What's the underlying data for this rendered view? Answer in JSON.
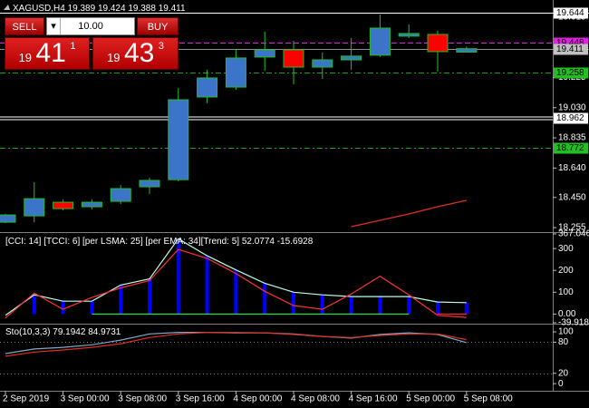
{
  "trade_panel": {
    "sell": "SELL",
    "buy": "BUY",
    "lot": "10.00",
    "sell_price": [
      "19",
      "41",
      "1"
    ],
    "buy_price": [
      "19",
      "43",
      "3"
    ]
  },
  "chart_data": [
    {
      "type": "candlestick",
      "title": "XAGUSD,H4",
      "categories": [
        "2 Sep 2019",
        null,
        "3 Sep 00:00",
        null,
        "3 Sep 08:00",
        null,
        "3 Sep 16:00",
        null,
        "4 Sep 00:00",
        null,
        "4 Sep 08:00",
        null,
        "4 Sep 16:00",
        null,
        "5 Sep 00:00",
        null,
        "5 Sep 08:00"
      ],
      "open": [
        18.29,
        18.331,
        18.419,
        18.39,
        18.425,
        18.519,
        18.565,
        19.099,
        19.163,
        19.357,
        19.404,
        19.292,
        19.339,
        19.369,
        19.492,
        19.503,
        19.389
      ],
      "high": [
        18.345,
        18.548,
        18.437,
        18.437,
        18.53,
        18.577,
        19.157,
        19.275,
        19.41,
        19.521,
        19.462,
        19.386,
        19.48,
        19.632,
        19.568,
        19.527,
        19.424
      ],
      "low": [
        18.285,
        18.29,
        18.366,
        18.372,
        18.407,
        18.472,
        18.554,
        19.058,
        19.146,
        19.269,
        19.181,
        19.216,
        19.275,
        19.357,
        19.48,
        19.263,
        19.388
      ],
      "close": [
        18.337,
        18.442,
        18.378,
        18.419,
        18.507,
        18.56,
        19.081,
        19.222,
        19.351,
        19.404,
        19.292,
        19.339,
        19.363,
        19.544,
        19.509,
        19.392,
        19.411
      ],
      "bull_color": "#3b74c9",
      "bear_color": "#ff0000",
      "wick_color": "#22c022",
      "series": [
        {
          "color": "#e03020",
          "values": [
            null,
            null,
            null,
            null,
            null,
            null,
            null,
            null,
            null,
            null,
            null,
            null,
            18.261,
            18.302,
            18.343,
            18.39,
            18.431
          ]
        }
      ],
      "levels": [
        {
          "value": 19.644,
          "color": "#ffffff",
          "style": "solid",
          "label_bg": "#ffffff"
        },
        {
          "value": 19.448,
          "color": "#e020e0",
          "style": "dashed",
          "label_bg": "#e020e0"
        },
        {
          "value": 19.411,
          "color": "#909090",
          "style": "solid",
          "label_bg": "#c0c0c0"
        },
        {
          "value": 19.258,
          "color": "#20a020",
          "style": "dashdot",
          "label_bg": "#20c020"
        },
        {
          "value": 18.962,
          "color": "#ffffff",
          "style": "double",
          "label_bg": "#ffffff"
        },
        {
          "value": 18.772,
          "color": "#20a020",
          "style": "dashdot",
          "label_bg": "#20c020"
        }
      ],
      "ylim": [
        18.232,
        19.708
      ],
      "yticks": [
        19.615,
        19.225,
        {
          "value": 19.03,
          "label": "19.030"
        },
        18.835,
        {
          "value": 18.64,
          "label": "18.640"
        },
        {
          "value": 18.45,
          "label": "18.450"
        },
        18.255
      ]
    },
    {
      "type": "indicator",
      "title": "[CCI: 14] [TCCI: 6] [per LSMA: 25] [per EMA: 34][Trend: 5]",
      "series": [
        {
          "color": "#b8ffe8",
          "histogram_color": "#0000ff",
          "values": [
            -6,
            88,
            59,
            59,
            133,
            161,
            345,
            267,
            202,
            141,
            100,
            88,
            80,
            80,
            80,
            55,
            52.0774
          ]
        },
        {
          "color": "#ff3030",
          "values": [
            -18,
            96,
            22,
            76,
            120,
            153,
            296,
            255,
            186,
            104,
            39,
            22,
            92,
            173,
            88,
            -6,
            -15.6928
          ]
        },
        {
          "color": "#20e020",
          "values": [
            null,
            null,
            null,
            0,
            0,
            0,
            0,
            0,
            0,
            0,
            0,
            0,
            0,
            0,
            0,
            null,
            null
          ]
        },
        {
          "color": "#ff2020",
          "values": [
            null,
            null,
            null,
            null,
            null,
            null,
            null,
            null,
            null,
            null,
            null,
            null,
            null,
            null,
            null,
            0,
            0
          ]
        }
      ],
      "title_values": [
        0,
        1
      ],
      "ylim": [
        -39.9185,
        367.0466
      ],
      "yticks": [
        367.0466,
        300,
        200,
        100,
        {
          "value": 0,
          "label": "0.00"
        },
        -39.9185
      ]
    },
    {
      "type": "indicator",
      "title": "Sto(10,3,3)",
      "series": [
        {
          "color": "#7fa8c8",
          "values": [
            58,
            67,
            70,
            75,
            84,
            96,
            99,
            99,
            98,
            98,
            96,
            91,
            88,
            95,
            98,
            95,
            79.1942
          ]
        },
        {
          "color": "#e03020",
          "values": [
            53,
            61,
            65,
            70,
            77,
            89,
            96,
            99,
            99,
            98,
            95,
            91,
            89,
            93,
            96,
            96,
            84.9731
          ]
        }
      ],
      "title_values": [
        0,
        1
      ],
      "levels": [
        {
          "value": 80,
          "color": "#808080",
          "style": "dotted"
        },
        {
          "value": 20,
          "color": "#808080",
          "style": "dotted"
        }
      ],
      "ylim": [
        -12,
        114
      ],
      "yticks": [
        100,
        80,
        20,
        0
      ]
    }
  ]
}
